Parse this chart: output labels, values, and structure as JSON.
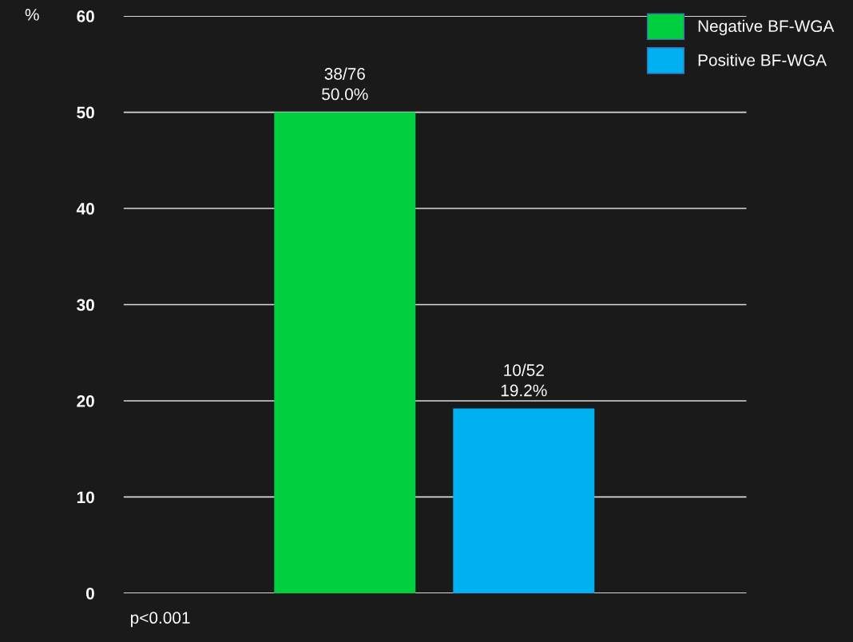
{
  "chart_data": {
    "type": "bar",
    "ylabel": "%",
    "categories": [
      null,
      null
    ],
    "series": [
      {
        "name": "Negative BF-WGA",
        "color": "#00d040",
        "values": [
          50.0,
          null
        ],
        "value_labels": [
          "38/76\n50.0%",
          null
        ]
      },
      {
        "name": "Positive BF-WGA",
        "color": "#00b0f0",
        "values": [
          null,
          19.2
        ],
        "value_labels": [
          null,
          "10/52\n19.2%"
        ]
      }
    ],
    "ylim": [
      0,
      60
    ],
    "yticks": [
      0,
      10,
      20,
      30,
      40,
      50,
      60
    ],
    "grid": "y",
    "legend": "top right",
    "annotations": [
      "p<0.001"
    ]
  }
}
